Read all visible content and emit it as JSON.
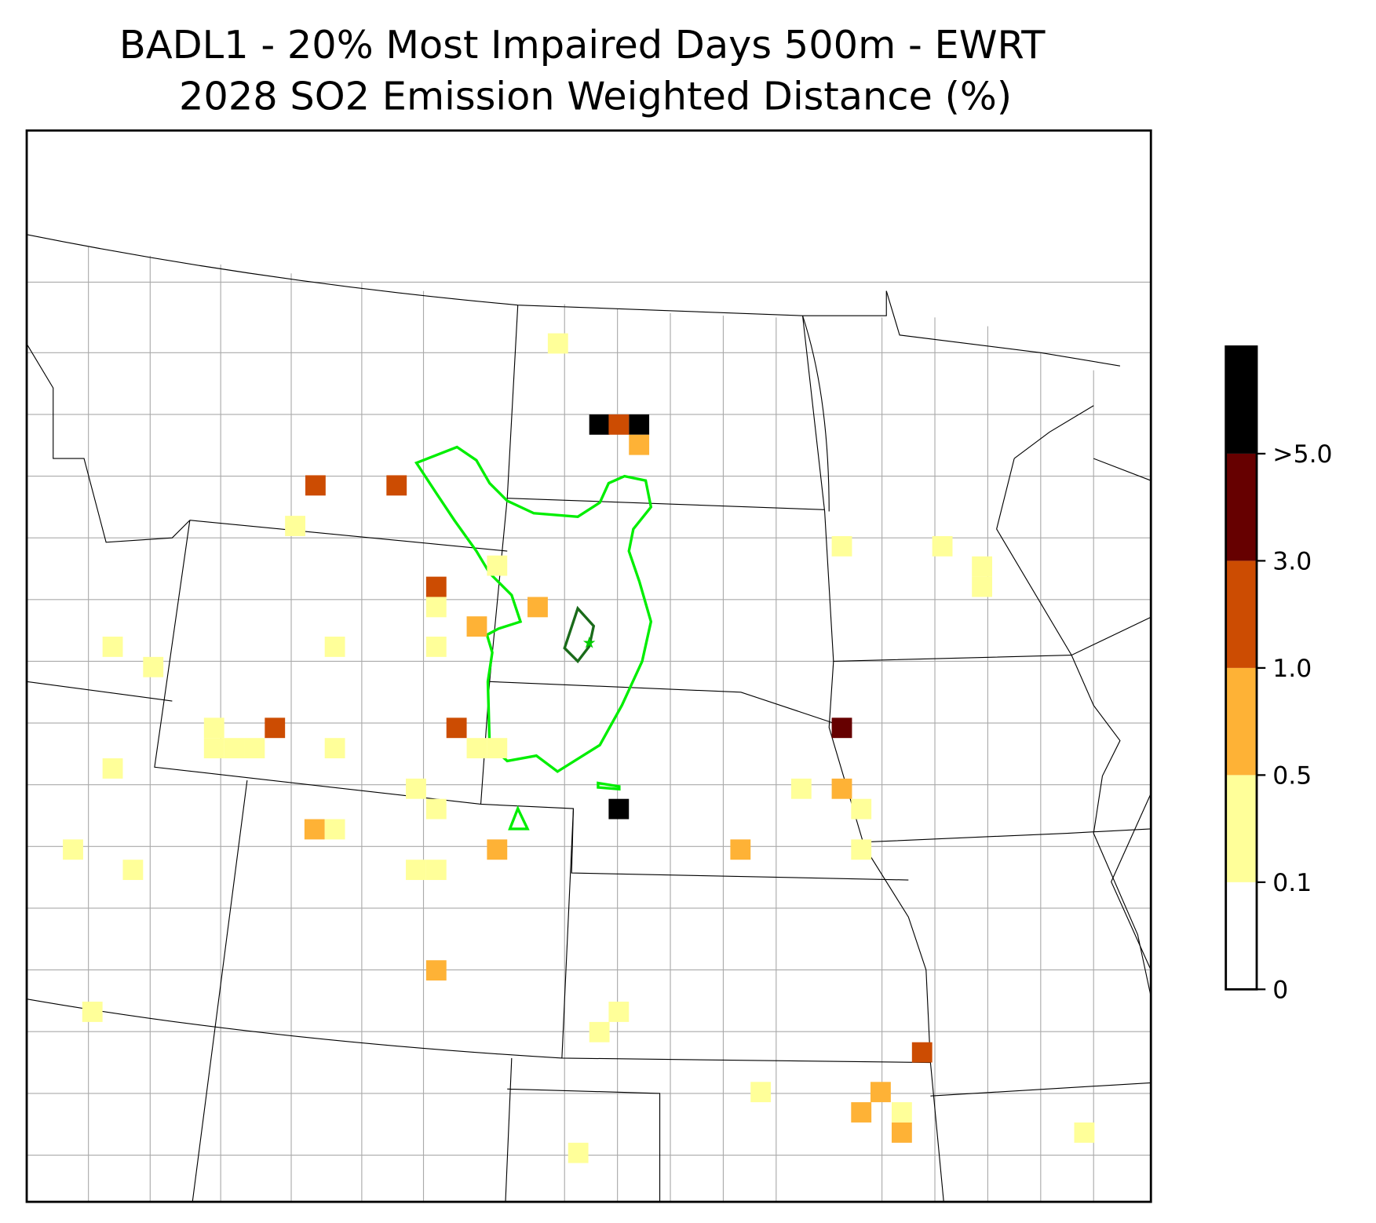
{
  "map": {
    "title": [
      "BADL1 - 20% Most Impaired Days 500m - EWRT",
      "2028 SO2 Emission Weighted Distance (%)"
    ],
    "colorbar": {
      "ticks": [
        0,
        0.1,
        0.5,
        {
          "value": 1,
          "label": "1.0"
        },
        {
          "value": 3,
          "label": "3.0"
        },
        {
          "value": 5,
          "label": ">5.0"
        }
      ],
      "colors": [
        "#ffffff",
        "#ffff99",
        "#feb236",
        "#cc4c02",
        "#660000",
        "#000000"
      ]
    }
  }
}
